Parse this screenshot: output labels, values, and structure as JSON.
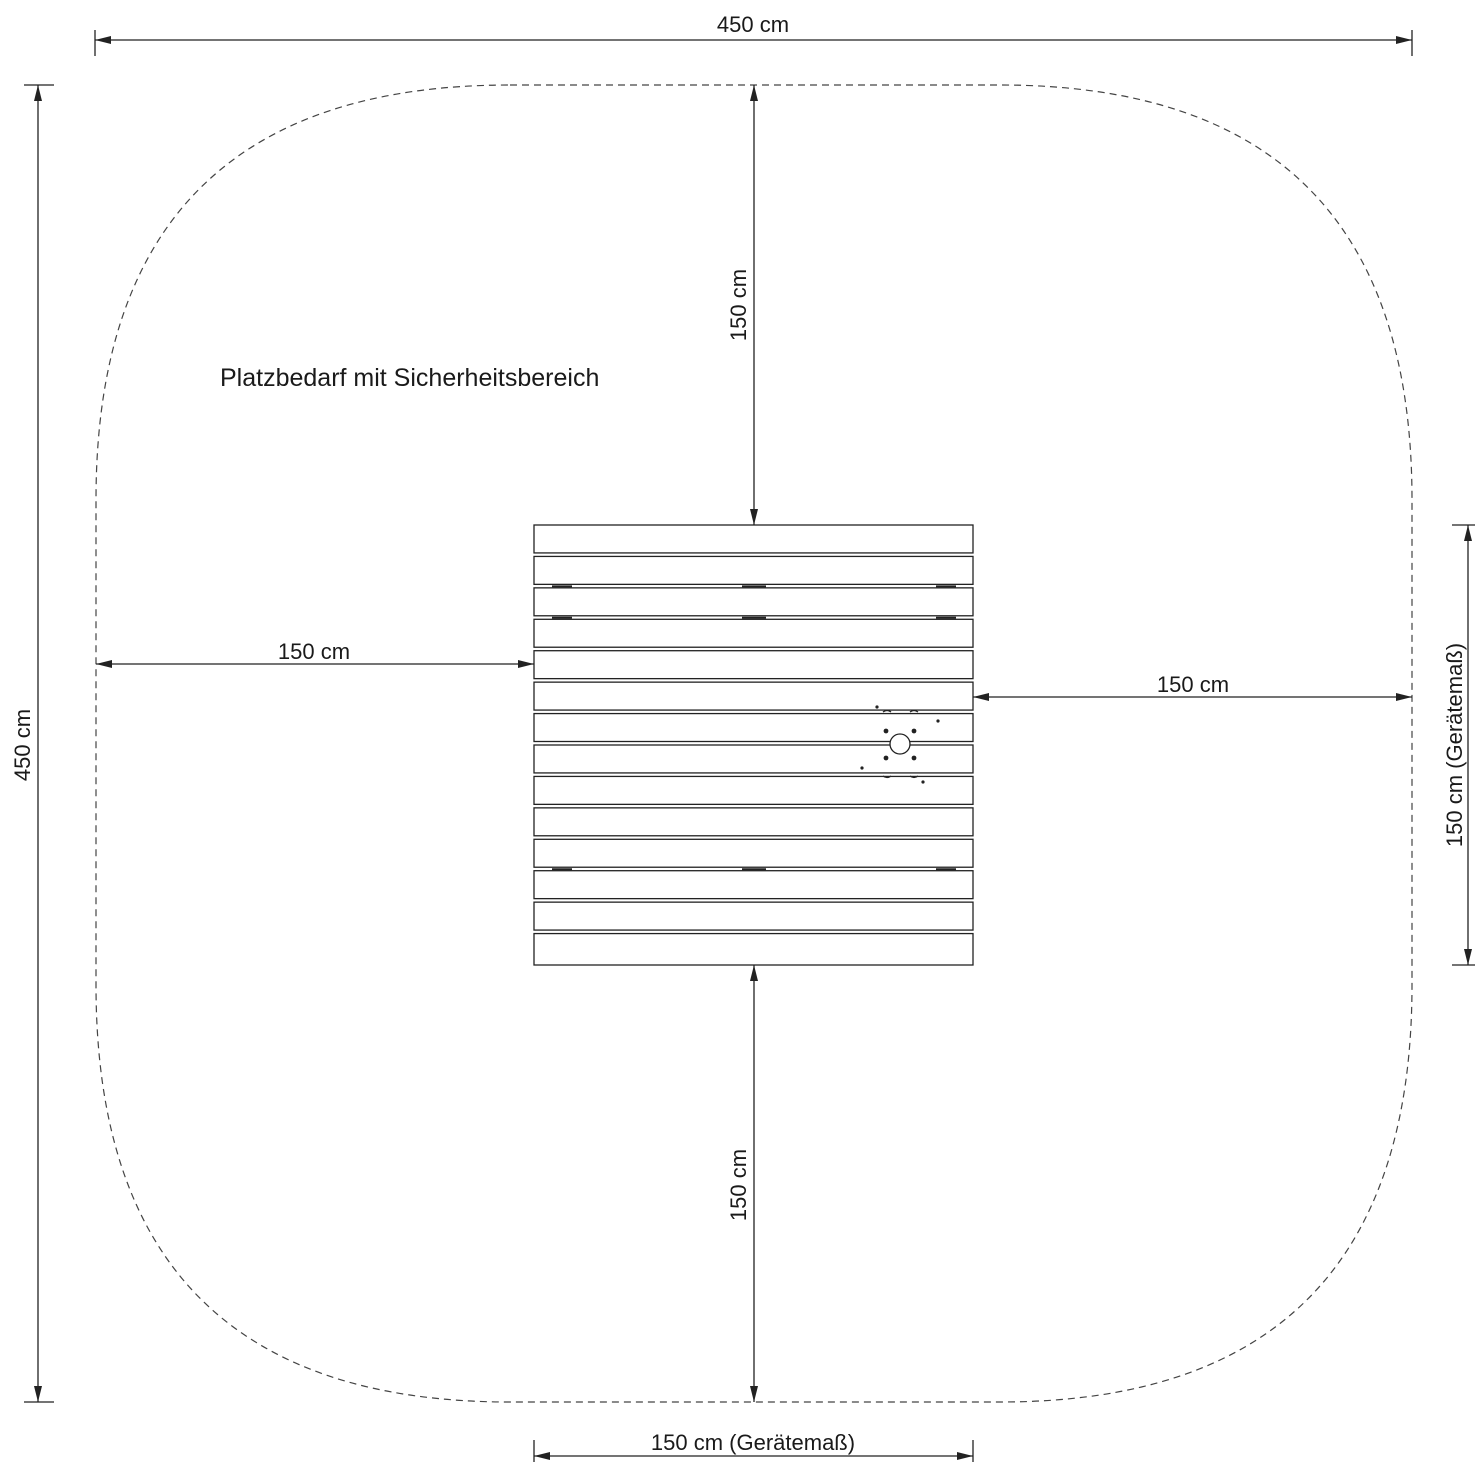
{
  "labels": {
    "title": "Platzbedarf mit Sicherheitsbereich",
    "top_total": "450 cm",
    "left_total": "450 cm",
    "clearance_top": "150 cm",
    "clearance_bottom": "150 cm",
    "clearance_left": "150 cm",
    "clearance_right": "150 cm",
    "device_width": "150 cm (Gerätemaß)",
    "device_depth": "150 cm (Gerätemaß)"
  },
  "device": {
    "slat_count": 14
  }
}
